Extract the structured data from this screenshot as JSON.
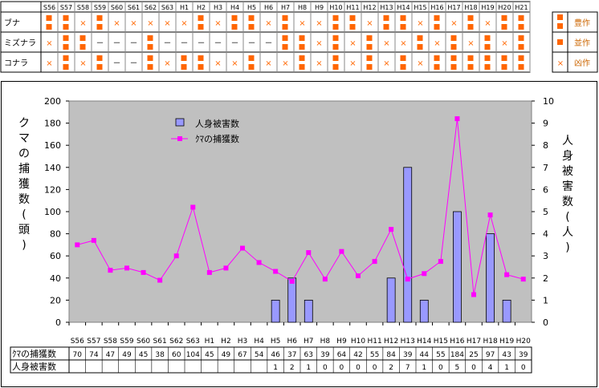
{
  "mast_table": {
    "years": [
      "S56",
      "S57",
      "S58",
      "S59",
      "S60",
      "S61",
      "S62",
      "S63",
      "H1",
      "H2",
      "H3",
      "H4",
      "H5",
      "H6",
      "H7",
      "H8",
      "H9",
      "H10",
      "H11",
      "H12",
      "H13",
      "H14",
      "H15",
      "H16",
      "H17",
      "H18",
      "H19",
      "H20",
      "H21"
    ],
    "rows": [
      {
        "label": "ブナ",
        "values": [
          "good",
          "good",
          "poor",
          "good",
          "poor",
          "poor",
          "poor",
          "poor",
          "poor",
          "good",
          "poor",
          "good",
          "good",
          "poor",
          "good",
          "poor",
          "poor",
          "good",
          "good",
          "poor",
          "good",
          "good",
          "poor",
          "good",
          "poor",
          "good",
          "poor",
          "good",
          "good"
        ]
      },
      {
        "label": "ミズナラ",
        "values": [
          "poor",
          "good",
          "good",
          "none",
          "none",
          "none",
          "good",
          "none",
          "none",
          "none",
          "none",
          "none",
          "none",
          "none",
          "good",
          "good",
          "poor",
          "good",
          "poor",
          "good",
          "poor",
          "poor",
          "good",
          "poor",
          "good",
          "poor",
          "good",
          "poor",
          "good"
        ]
      },
      {
        "label": "コナラ",
        "values": [
          "poor",
          "good",
          "poor",
          "good",
          "none",
          "none",
          "good",
          "poor",
          "good",
          "good",
          "poor",
          "poor",
          "good",
          "poor",
          "poor",
          "good",
          "poor",
          "good",
          "poor",
          "good",
          "poor",
          "good",
          "poor",
          "good",
          "good",
          "good",
          "good",
          "good",
          "good"
        ]
      }
    ],
    "legend": [
      {
        "symbol": "■",
        "label": "豊作"
      },
      {
        "symbol": "■",
        "label": "並作"
      },
      {
        "symbol": "×",
        "label": "凶作"
      }
    ],
    "none_symbol": "－",
    "good_color": "#ff6600",
    "poor_color": "#ff6600",
    "legend_text_color": "#cc6600"
  },
  "chart_data": {
    "type": "bar",
    "categories": [
      "S56",
      "S57",
      "S58",
      "S59",
      "S60",
      "S61",
      "S62",
      "S63",
      "H1",
      "H2",
      "H3",
      "H4",
      "H5",
      "H6",
      "H7",
      "H8",
      "H9",
      "H10",
      "H11",
      "H12",
      "H13",
      "H14",
      "H15",
      "H16",
      "H17",
      "H18",
      "H19",
      "H20"
    ],
    "series": [
      {
        "name": "人身被害数",
        "type": "bar",
        "axis": "right",
        "values": [
          0,
          0,
          0,
          0,
          0,
          0,
          0,
          0,
          0,
          0,
          0,
          0,
          1,
          2,
          1,
          0,
          0,
          0,
          0,
          2,
          7,
          1,
          0,
          5,
          0,
          4,
          1,
          0
        ],
        "color": "#9999ff"
      },
      {
        "name": "ｸﾏの捕獲数",
        "type": "line",
        "axis": "left",
        "values": [
          70,
          74,
          47,
          49,
          45,
          38,
          60,
          104,
          45,
          49,
          67,
          54,
          46,
          37,
          63,
          39,
          64,
          42,
          55,
          84,
          39,
          44,
          55,
          184,
          25,
          97,
          43,
          39
        ],
        "color": "#ff00ff"
      }
    ],
    "ylabel": "クマの捕獲数(頭)",
    "y2label": "人身被害数(人)",
    "ylim": [
      0,
      200
    ],
    "y2lim": [
      0,
      10
    ],
    "yticks": [
      "0",
      "20",
      "40",
      "60",
      "80",
      "100",
      "120",
      "140",
      "160",
      "180",
      "200"
    ],
    "y2ticks": [
      "0",
      "1",
      "2",
      "3",
      "4",
      "5",
      "6",
      "7",
      "8",
      "9",
      "10"
    ],
    "legend_position": "top-left",
    "plot_background": "#c0c0c0",
    "grid": false
  },
  "data_table": {
    "rows": [
      {
        "label": "ｸﾏの捕獲数",
        "values": [
          "70",
          "74",
          "47",
          "49",
          "45",
          "38",
          "60",
          "104",
          "45",
          "49",
          "67",
          "54",
          "46",
          "37",
          "63",
          "39",
          "64",
          "42",
          "55",
          "84",
          "39",
          "44",
          "55",
          "184",
          "25",
          "97",
          "43",
          "39"
        ]
      },
      {
        "label": "人身被害数",
        "values": [
          "",
          "",
          "",
          "",
          "",
          "",
          "",
          "",
          "",
          "",
          "",
          "",
          "1",
          "2",
          "1",
          "0",
          "0",
          "0",
          "0",
          "2",
          "7",
          "1",
          "0",
          "5",
          "0",
          "4",
          "1",
          "0"
        ]
      }
    ]
  }
}
